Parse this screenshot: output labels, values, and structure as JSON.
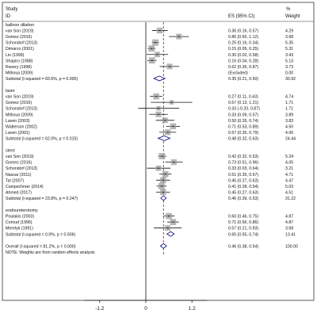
{
  "chart_data": {
    "type": "forest",
    "header": {
      "study": "Study",
      "id": "ID",
      "es": "ES (95% CI)",
      "weight_pct": "%",
      "weight": "Weight"
    },
    "x_ticks": [
      {
        "value": -1.2,
        "label": "-1.2"
      },
      {
        "value": 0,
        "label": "0"
      },
      {
        "value": 1.2,
        "label": "1.2"
      }
    ],
    "xlim": [
      -1.6,
      1.6
    ],
    "overall_line": 0.46,
    "groups": [
      {
        "name": "balloon dilation",
        "studies": [
          {
            "label": "van Son (2019)",
            "es": 0.36,
            "lo": 0.16,
            "hi": 0.57,
            "text": "0.36 (0.16, 0.57)",
            "weight": "4.29"
          },
          {
            "label": "Gomez (2016)",
            "es": 0.86,
            "lo": 0.6,
            "hi": 1.12,
            "text": "0.86 (0.60, 1.12)",
            "weight": "3.68"
          },
          {
            "label": "Schondorf (2013)",
            "es": 0.25,
            "lo": 0.16,
            "hi": 0.34,
            "text": "0.25 (0.16, 0.34)",
            "weight": "5.35"
          },
          {
            "label": "Dimarco (2001)",
            "es": 0.15,
            "lo": 0.05,
            "hi": 0.25,
            "text": "0.15 (0.05, 0.25)",
            "weight": "5.31"
          },
          {
            "label": "Lin (1999)",
            "es": 0.3,
            "lo": 0.02,
            "hi": 0.58,
            "text": "0.30 (0.02, 0.58)",
            "weight": "3.43"
          },
          {
            "label": "Shapiro (1988)",
            "es": 0.16,
            "lo": 0.04,
            "hi": 0.28,
            "text": "0.16 (0.04, 0.28)",
            "weight": "5.13"
          },
          {
            "label": "Ravery (1998)",
            "es": 0.62,
            "lo": 0.36,
            "hi": 0.87,
            "text": "0.62 (0.36, 0.87)",
            "weight": "3.73"
          },
          {
            "label": "Milhoua (2009)",
            "es": null,
            "lo": null,
            "hi": null,
            "text": "(Excluded)",
            "weight": "0.00"
          }
        ],
        "subtotal": {
          "label": "Subtotal  (I-squared = 83.6%, p = 0.000)",
          "es": 0.35,
          "lo": 0.21,
          "hi": 0.5,
          "text": "0.35 (0.21, 0.50)",
          "weight": "30.92"
        }
      },
      {
        "name": "laser",
        "studies": [
          {
            "label": "van Son (2019)",
            "es": 0.27,
            "lo": 0.11,
            "hi": 0.43,
            "text": "0.27 (0.11, 0.43)",
            "weight": "4.74"
          },
          {
            "label": "Gomez (2016)",
            "es": 0.67,
            "lo": 0.13,
            "hi": 1.21,
            "text": "0.67 (0.13, 1.21)",
            "weight": "1.71"
          },
          {
            "label": "Schondorf (2013)",
            "es": 0.33,
            "lo": -0.2,
            "hi": 0.87,
            "text": "0.33 (-0.20, 0.87)",
            "weight": "1.71"
          },
          {
            "label": "Milhoua (2009)",
            "es": 0.33,
            "lo": 0.09,
            "hi": 0.57,
            "text": "0.33 (0.09, 0.57)",
            "weight": "3.89"
          },
          {
            "label": "Laven (2003)",
            "es": 0.5,
            "lo": 0.26,
            "hi": 0.74,
            "text": "0.50 (0.26, 0.74)",
            "weight": "3.83"
          },
          {
            "label": "Watterson (2002)",
            "es": 0.71,
            "lo": 0.53,
            "hi": 0.89,
            "text": "0.71 (0.53, 0.89)",
            "weight": "4.50"
          },
          {
            "label": "Laven (2001)",
            "es": 0.57,
            "lo": 0.35,
            "hi": 0.79,
            "text": "0.57 (0.35, 0.79)",
            "weight": "4.06"
          }
        ],
        "subtotal": {
          "label": "Subtotal  (I-squared = 62.0%, p = 0.015)",
          "es": 0.48,
          "lo": 0.32,
          "hi": 0.63,
          "text": "0.48 (0.32, 0.63)",
          "weight": "24.44"
        }
      },
      {
        "name": "stent",
        "studies": [
          {
            "label": "van Son (2019)",
            "es": 0.42,
            "lo": 0.32,
            "hi": 0.53,
            "text": "0.42 (0.32, 0.53)",
            "weight": "5.24"
          },
          {
            "label": "Gomez (2016)",
            "es": 0.73,
            "lo": 0.51,
            "hi": 0.96,
            "text": "0.73 (0.51, 0.96)",
            "weight": "4.05"
          },
          {
            "label": "Schondorf (2013)",
            "es": 0.33,
            "lo": 0.03,
            "hi": 0.64,
            "text": "0.33 (0.03, 0.64)",
            "weight": "3.21"
          },
          {
            "label": "Nassar (2011)",
            "es": 0.51,
            "lo": 0.35,
            "hi": 0.67,
            "text": "0.51 (0.35, 0.67)",
            "weight": "4.71"
          },
          {
            "label": "Tal (2007)",
            "es": 0.45,
            "lo": 0.27,
            "hi": 0.63,
            "text": "0.45 (0.27, 0.63)",
            "weight": "4.47"
          },
          {
            "label": "Campschroer (2014)",
            "es": 0.41,
            "lo": 0.28,
            "hi": 0.54,
            "text": "0.41 (0.28, 0.54)",
            "weight": "5.03"
          },
          {
            "label": "Ahmed (2017)",
            "es": 0.45,
            "lo": 0.27,
            "hi": 0.63,
            "text": "0.45 (0.27, 0.63)",
            "weight": "4.51"
          }
        ],
        "subtotal": {
          "label": "Subtotal  (I-squared = 23.8%, p = 0.247)",
          "es": 0.46,
          "lo": 0.39,
          "hi": 0.53,
          "text": "0.46 (0.39, 0.53)",
          "weight": "31.22"
        }
      },
      {
        "name": "endoureterotomy",
        "studies": [
          {
            "label": "Poulakis (2003)",
            "es": 0.6,
            "lo": 0.46,
            "hi": 0.75,
            "text": "0.60 (0.46, 0.75)",
            "weight": "4.87"
          },
          {
            "label": "Cornud (1996)",
            "es": 0.71,
            "lo": 0.56,
            "hi": 0.86,
            "text": "0.71 (0.56, 0.86)",
            "weight": "4.87"
          },
          {
            "label": "Meretyk (1991)",
            "es": 0.57,
            "lo": 0.21,
            "hi": 0.93,
            "text": "0.57 (0.21, 0.93)",
            "weight": "3.68"
          }
        ],
        "subtotal": {
          "label": "Subtotal  (I-squared = 0.0%, p = 0.506)",
          "es": 0.65,
          "lo": 0.55,
          "hi": 0.74,
          "text": "0.65 (0.55, 0.74)",
          "weight": "13.41"
        }
      }
    ],
    "overall": {
      "label": "Overall  (I-squared = 81.2%, p = 0.000)",
      "es": 0.46,
      "lo": 0.38,
      "hi": 0.54,
      "text": "0.46 (0.38, 0.54)",
      "weight": "100.00"
    },
    "note": "NOTE: Weights are from random effects analysis",
    "colors": {
      "marker_box": "#9e9e9e",
      "diamond": "#1a1a8c",
      "ref_line": "#c62828",
      "frame": "#333333",
      "text": "#111111"
    }
  }
}
